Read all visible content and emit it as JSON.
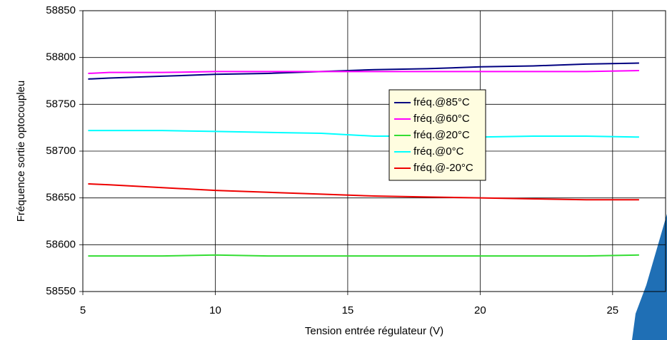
{
  "chart_data": {
    "type": "line",
    "x_label": "Tension entrée régulateur (V)",
    "y_label": "Fréquence sortie optocoupleu",
    "x": [
      5.2,
      6,
      8,
      10,
      12,
      14,
      16,
      18,
      20,
      22,
      24,
      26
    ],
    "series": [
      {
        "name": "fréq.@85°C",
        "color": "#000080",
        "values": [
          58777,
          58778,
          58780,
          58782,
          58783,
          58785,
          58787,
          58788,
          58790,
          58791,
          58793,
          58794
        ]
      },
      {
        "name": "fréq.@60°C",
        "color": "#ff00ff",
        "values": [
          58783,
          58784,
          58784,
          58785,
          58785,
          58785,
          58785,
          58785,
          58785,
          58785,
          58785,
          58786
        ]
      },
      {
        "name": "fréq.@20°C",
        "color": "#33dd33",
        "values": [
          58588,
          58588,
          58588,
          58589,
          58588,
          58588,
          58588,
          58588,
          58588,
          58588,
          58588,
          58589
        ]
      },
      {
        "name": "fréq.@0°C",
        "color": "#00ffff",
        "values": [
          58722,
          58722,
          58722,
          58721,
          58720,
          58719,
          58716,
          58716,
          58715,
          58716,
          58716,
          58715
        ]
      },
      {
        "name": "fréq.@-20°C",
        "color": "#ee0000",
        "values": [
          58665,
          58664,
          58661,
          58658,
          58656,
          58654,
          58652,
          58651,
          58650,
          58649,
          58648,
          58648
        ]
      }
    ],
    "xlim": [
      5,
      27
    ],
    "xticks": [
      5,
      10,
      15,
      20,
      25
    ],
    "ylim": [
      58550,
      58850
    ],
    "yticks": [
      58550,
      58600,
      58650,
      58700,
      58750,
      58800,
      58850
    ],
    "grid": true
  }
}
